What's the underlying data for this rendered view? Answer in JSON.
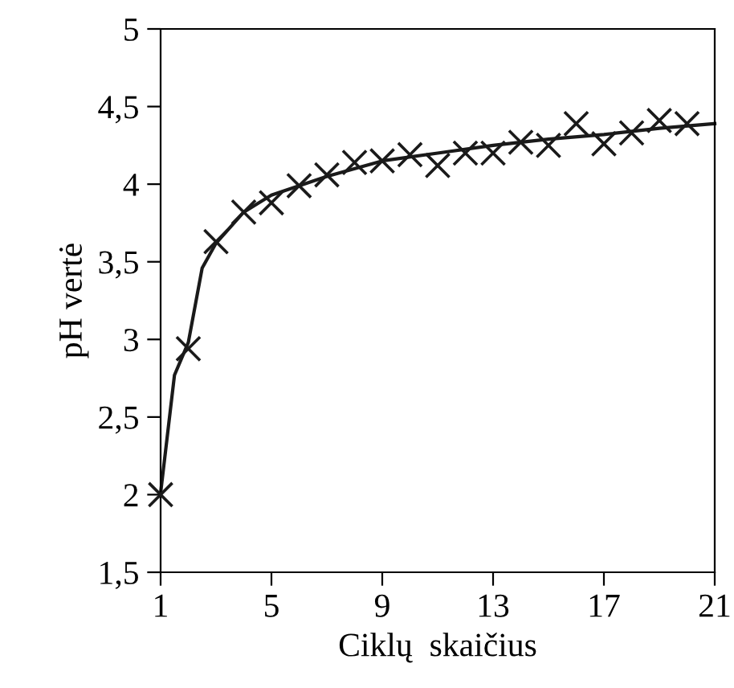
{
  "chart_data": {
    "type": "scatter",
    "xlabel": "Ciklų  skaičius",
    "ylabel": "pH vertė",
    "xlim": [
      1,
      21
    ],
    "xticks": [
      1,
      5,
      9,
      13,
      17,
      21
    ],
    "ylim": [
      1.5,
      5
    ],
    "yticks": [
      {
        "value": 1.5,
        "label": "1,5"
      },
      2,
      {
        "value": 2.5,
        "label": "2,5"
      },
      3,
      {
        "value": 3.5,
        "label": "3,5"
      },
      4,
      {
        "value": 4.5,
        "label": "4,5"
      },
      5
    ],
    "grid": false,
    "legend": false,
    "series": [
      {
        "marker": "cross",
        "color": "#1a1a1a",
        "x": [
          1,
          2,
          3,
          4,
          5,
          6,
          7,
          8,
          9,
          10,
          11,
          12,
          13,
          14,
          15,
          16,
          17,
          18,
          19,
          20
        ],
        "values": [
          2.0,
          2.94,
          3.63,
          3.82,
          3.88,
          3.99,
          4.06,
          4.14,
          4.15,
          4.19,
          4.12,
          4.2,
          4.2,
          4.27,
          4.25,
          4.39,
          4.26,
          4.33,
          4.41,
          4.39
        ]
      },
      {
        "type": "line",
        "marker": "none",
        "line_style": "solid",
        "color": "#1a1a1a",
        "x": [
          1,
          1.5,
          2,
          2.5,
          3,
          4,
          5,
          7,
          9,
          11,
          13,
          15,
          17,
          19,
          21
        ],
        "values": [
          2.01,
          2.77,
          2.98,
          3.46,
          3.62,
          3.82,
          3.93,
          4.05,
          4.15,
          4.2,
          4.25,
          4.29,
          4.32,
          4.36,
          4.39
        ]
      }
    ]
  }
}
